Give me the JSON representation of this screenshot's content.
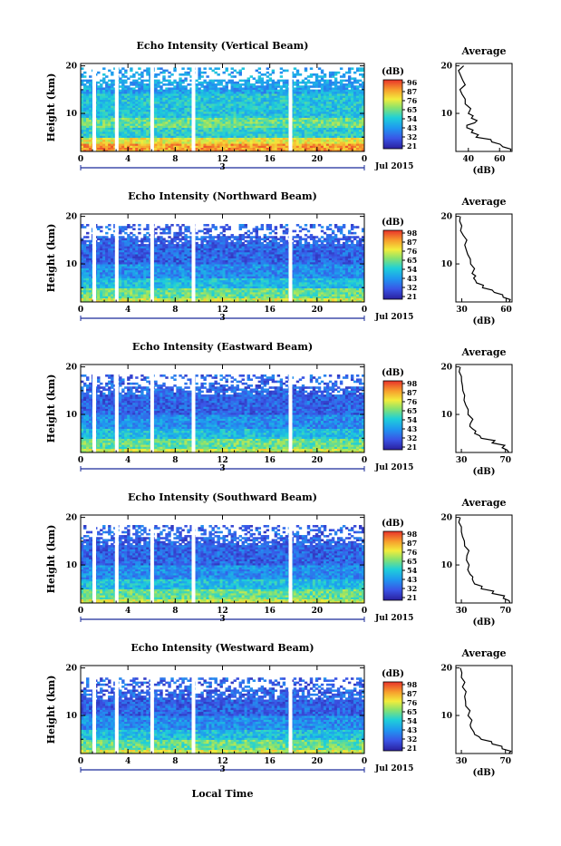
{
  "figure": {
    "xlabel": "Local Time",
    "date_label": "Jul 2015",
    "day_label": "3",
    "average_title": "Average",
    "db_unit": "(dB)",
    "ylabel": "Height (km)"
  },
  "chart_data": [
    {
      "type": "heatmap",
      "title": "Echo Intensity (Vertical Beam)",
      "xlabel": "Local Time",
      "ylabel": "Height (km)",
      "xlim": [
        0,
        24
      ],
      "ylim": [
        2,
        20.5
      ],
      "x_ticks": [
        "0",
        "4",
        "8",
        "12",
        "16",
        "20",
        "0"
      ],
      "y_ticks": [
        "10",
        "20"
      ],
      "colorbar": {
        "label": "(dB)",
        "ticks": [
          "96",
          "87",
          "76",
          "65",
          "54",
          "43",
          "32",
          "21"
        ],
        "range": [
          21,
          96
        ]
      },
      "data_gaps_hours": [
        1.15,
        3.05,
        6.05,
        9.55,
        17.75
      ],
      "echo_top_km": 20,
      "average_profile": {
        "title": "Average",
        "xlabel": "(dB)",
        "x_ticks": [
          "40",
          "60"
        ],
        "xlim": [
          32,
          68
        ],
        "height_km": [
          2,
          3,
          4,
          5,
          6,
          7,
          8,
          9,
          10,
          12,
          14,
          16,
          18,
          20
        ],
        "avg_db": [
          67,
          62,
          55,
          45,
          42,
          39,
          44,
          42,
          40,
          38,
          36,
          38,
          35,
          37
        ]
      }
    },
    {
      "type": "heatmap",
      "title": "Echo Intensity (Northward Beam)",
      "xlabel": "Local Time",
      "ylabel": "Height (km)",
      "xlim": [
        0,
        24
      ],
      "ylim": [
        2,
        20.5
      ],
      "x_ticks": [
        "0",
        "4",
        "8",
        "12",
        "16",
        "20",
        "0"
      ],
      "y_ticks": [
        "10",
        "20"
      ],
      "colorbar": {
        "label": "(dB)",
        "ticks": [
          "98",
          "87",
          "76",
          "65",
          "54",
          "43",
          "32",
          "21"
        ],
        "range": [
          21,
          98
        ]
      },
      "data_gaps_hours": [
        1.15,
        3.05,
        6.05,
        9.55,
        17.75
      ],
      "echo_top_km": 19,
      "average_profile": {
        "title": "Average",
        "xlabel": "(dB)",
        "x_ticks": [
          "30",
          "60"
        ],
        "xlim": [
          26,
          64
        ],
        "height_km": [
          2,
          3,
          4,
          5,
          6,
          7,
          8,
          10,
          12,
          14,
          16,
          18,
          20
        ],
        "avg_db": [
          62,
          58,
          52,
          44,
          40,
          38,
          37,
          36,
          34,
          32,
          31,
          30,
          29
        ]
      }
    },
    {
      "type": "heatmap",
      "title": "Echo Intensity (Eastward Beam)",
      "xlabel": "Local Time",
      "ylabel": "Height (km)",
      "xlim": [
        0,
        24
      ],
      "ylim": [
        2,
        20.5
      ],
      "x_ticks": [
        "0",
        "4",
        "8",
        "12",
        "16",
        "20",
        "0"
      ],
      "y_ticks": [
        "10",
        "20"
      ],
      "colorbar": {
        "label": "(dB)",
        "ticks": [
          "98",
          "87",
          "76",
          "65",
          "54",
          "43",
          "32",
          "21"
        ],
        "range": [
          21,
          98
        ]
      },
      "data_gaps_hours": [
        1.15,
        3.05,
        6.05,
        9.55,
        17.75
      ],
      "echo_top_km": 19,
      "average_profile": {
        "title": "Average",
        "xlabel": "(dB)",
        "x_ticks": [
          "30",
          "70"
        ],
        "xlim": [
          25,
          76
        ],
        "height_km": [
          2,
          3,
          4,
          5,
          6,
          7,
          8,
          10,
          12,
          14,
          16,
          18,
          20
        ],
        "avg_db": [
          73,
          67,
          58,
          48,
          42,
          40,
          38,
          36,
          34,
          33,
          31,
          30,
          29
        ]
      }
    },
    {
      "type": "heatmap",
      "title": "Echo Intensity (Southward Beam)",
      "xlabel": "Local Time",
      "ylabel": "Height (km)",
      "xlim": [
        0,
        24
      ],
      "ylim": [
        2,
        20.5
      ],
      "x_ticks": [
        "0",
        "4",
        "8",
        "12",
        "16",
        "20",
        "0"
      ],
      "y_ticks": [
        "10",
        "20"
      ],
      "colorbar": {
        "label": "(dB)",
        "ticks": [
          "98",
          "87",
          "76",
          "65",
          "54",
          "43",
          "32",
          "21"
        ],
        "range": [
          21,
          98
        ]
      },
      "data_gaps_hours": [
        1.15,
        3.05,
        6.05,
        9.55,
        17.75
      ],
      "echo_top_km": 19,
      "average_profile": {
        "title": "Average",
        "xlabel": "(dB)",
        "x_ticks": [
          "30",
          "70"
        ],
        "xlim": [
          25,
          76
        ],
        "height_km": [
          2,
          3,
          4,
          5,
          6,
          7,
          8,
          10,
          12,
          14,
          16,
          18,
          20
        ],
        "avg_db": [
          74,
          68,
          58,
          48,
          42,
          40,
          38,
          37,
          35,
          33,
          31,
          30,
          29
        ]
      }
    },
    {
      "type": "heatmap",
      "title": "Echo Intensity (Westward Beam)",
      "xlabel": "Local Time",
      "ylabel": "Height (km)",
      "xlim": [
        0,
        24
      ],
      "ylim": [
        2,
        20.5
      ],
      "x_ticks": [
        "0",
        "4",
        "8",
        "12",
        "16",
        "20",
        "0"
      ],
      "y_ticks": [
        "10",
        "20"
      ],
      "colorbar": {
        "label": "(dB)",
        "ticks": [
          "98",
          "87",
          "76",
          "65",
          "54",
          "43",
          "32",
          "21"
        ],
        "range": [
          21,
          98
        ]
      },
      "data_gaps_hours": [
        1.15,
        3.05,
        6.05,
        9.55,
        17.75
      ],
      "echo_top_km": 18.5,
      "average_profile": {
        "title": "Average",
        "xlabel": "(dB)",
        "x_ticks": [
          "30",
          "70"
        ],
        "xlim": [
          25,
          76
        ],
        "height_km": [
          2,
          3,
          4,
          5,
          6,
          7,
          8,
          10,
          12,
          14,
          16,
          18,
          20
        ],
        "avg_db": [
          73,
          67,
          58,
          48,
          42,
          40,
          38,
          36,
          34,
          33,
          31,
          30,
          29
        ]
      }
    }
  ]
}
